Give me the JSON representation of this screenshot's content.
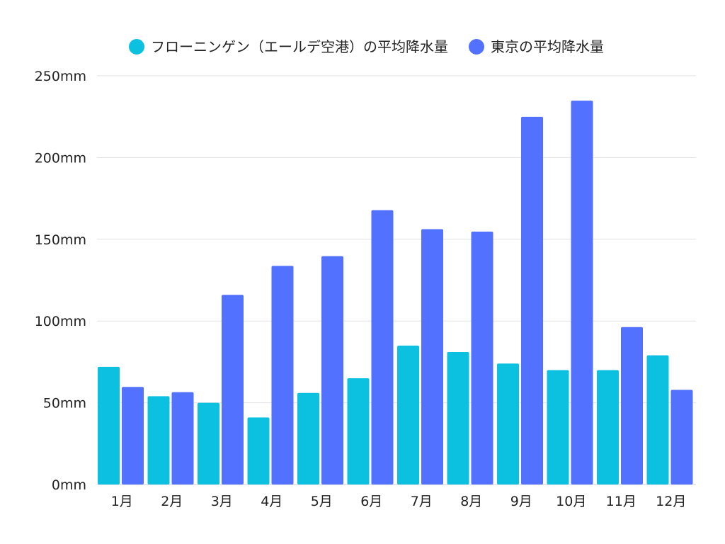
{
  "chart_data": {
    "type": "bar",
    "title": "",
    "xlabel": "",
    "ylabel": "",
    "categories": [
      "1月",
      "2月",
      "3月",
      "4月",
      "5月",
      "6月",
      "7月",
      "8月",
      "9月",
      "10月",
      "11月",
      "12月"
    ],
    "series": [
      {
        "name": "フローニンゲン（エールデ空港）の平均降水量",
        "color": "#0cc0df",
        "values": [
          72,
          54,
          50,
          41,
          56,
          65,
          85,
          81,
          74,
          70,
          70,
          79
        ]
      },
      {
        "name": "東京の平均降水量",
        "color": "#5271ff",
        "values": [
          59.7,
          56.5,
          116,
          133.7,
          139.7,
          167.8,
          156.2,
          154.7,
          224.9,
          234.8,
          96.3,
          57.9
        ]
      }
    ],
    "ylim": [
      0,
      250
    ],
    "yticks": [
      0,
      50,
      100,
      150,
      200,
      250
    ],
    "ytick_suffix": "mm",
    "ytick_labels": [
      "0mm",
      "50mm",
      "100mm",
      "150mm",
      "200mm",
      "250mm"
    ],
    "grid": true,
    "legend_position": "top"
  }
}
